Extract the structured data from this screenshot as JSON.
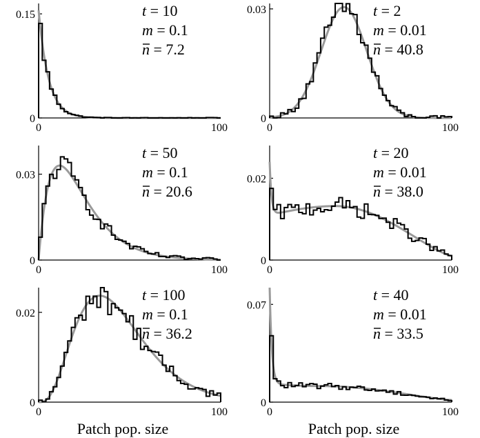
{
  "chart_data": [
    {
      "type": "histogram",
      "panel": "top-left",
      "xlim": [
        0,
        100
      ],
      "ylim": [
        0,
        0.165
      ],
      "x_ticks": [
        "0",
        "100"
      ],
      "y_ticks": [
        {
          "value": 0,
          "label": "0"
        },
        {
          "value": 0.15,
          "label": "0.15"
        }
      ],
      "annotation": {
        "t": "10",
        "m": "0.1",
        "nbar": "7.2"
      },
      "shape": "exponential",
      "params": {
        "peak_at_zero": 0.155,
        "decay_len": 5.5
      },
      "xlabel": ""
    },
    {
      "type": "histogram",
      "panel": "top-right",
      "xlim": [
        0,
        100
      ],
      "ylim": [
        0,
        0.0315
      ],
      "x_ticks": [
        "0",
        "100"
      ],
      "y_ticks": [
        {
          "value": 0,
          "label": "0"
        },
        {
          "value": 0.03,
          "label": "0.03"
        }
      ],
      "annotation": {
        "t": "2",
        "m": "0.01",
        "nbar": "40.8"
      },
      "shape": "gaussian",
      "params": {
        "mean": 40.8,
        "sd": 12.5,
        "peak": 0.0305
      },
      "xlabel": ""
    },
    {
      "type": "histogram",
      "panel": "middle-left",
      "xlim": [
        0,
        100
      ],
      "ylim": [
        0,
        0.04
      ],
      "x_ticks": [
        "0",
        "100"
      ],
      "y_ticks": [
        {
          "value": 0,
          "label": "0"
        },
        {
          "value": 0.03,
          "label": "0.03"
        }
      ],
      "annotation": {
        "t": "50",
        "m": "0.1",
        "nbar": "20.6"
      },
      "shape": "gamma",
      "params": {
        "shape_k": 2.0,
        "scale": 11.5,
        "peak": 0.033
      },
      "xlabel": ""
    },
    {
      "type": "histogram",
      "panel": "middle-right",
      "xlim": [
        0,
        100
      ],
      "ylim": [
        0,
        0.028
      ],
      "x_ticks": [
        "0",
        "100"
      ],
      "y_ticks": [
        {
          "value": 0,
          "label": "0"
        },
        {
          "value": 0.02,
          "label": "0.02"
        }
      ],
      "annotation": {
        "t": "20",
        "m": "0.01",
        "nbar": "38.0"
      },
      "shape": "spike_plus_hump",
      "params": {
        "spike": 0.024,
        "spike_len": 1.0,
        "base0": 0.011,
        "hump_peak": 0.0132,
        "hump_mean": 36,
        "hump_sd": 45,
        "tail_at_100": 0.001
      },
      "xlabel": ""
    },
    {
      "type": "histogram",
      "panel": "bottom-left",
      "xlim": [
        0,
        100
      ],
      "ylim": [
        0,
        0.0255
      ],
      "x_ticks": [
        "0",
        "100"
      ],
      "y_ticks": [
        {
          "value": 0,
          "label": "0"
        },
        {
          "value": 0.02,
          "label": "0.02"
        }
      ],
      "annotation": {
        "t": "100",
        "m": "0.1",
        "nbar": "36.2"
      },
      "shape": "gamma",
      "params": {
        "shape_k": 4.2,
        "scale": 10.5,
        "peak": 0.0237
      },
      "xlabel": "Patch pop. size"
    },
    {
      "type": "histogram",
      "panel": "bottom-right",
      "xlim": [
        0,
        100
      ],
      "ylim": [
        0,
        0.082
      ],
      "x_ticks": [
        "0",
        "100"
      ],
      "y_ticks": [
        {
          "value": 0,
          "label": "0"
        },
        {
          "value": 0.07,
          "label": "0.07"
        }
      ],
      "annotation": {
        "t": "40",
        "m": "0.01",
        "nbar": "33.5"
      },
      "shape": "spike_plus_hump",
      "params": {
        "spike": 0.082,
        "spike_len": 1.2,
        "base0": 0.013,
        "hump_peak": 0.0115,
        "hump_mean": 28,
        "hump_sd": 40,
        "tail_at_100": 0.0015
      },
      "xlabel": "Patch pop. size"
    }
  ]
}
